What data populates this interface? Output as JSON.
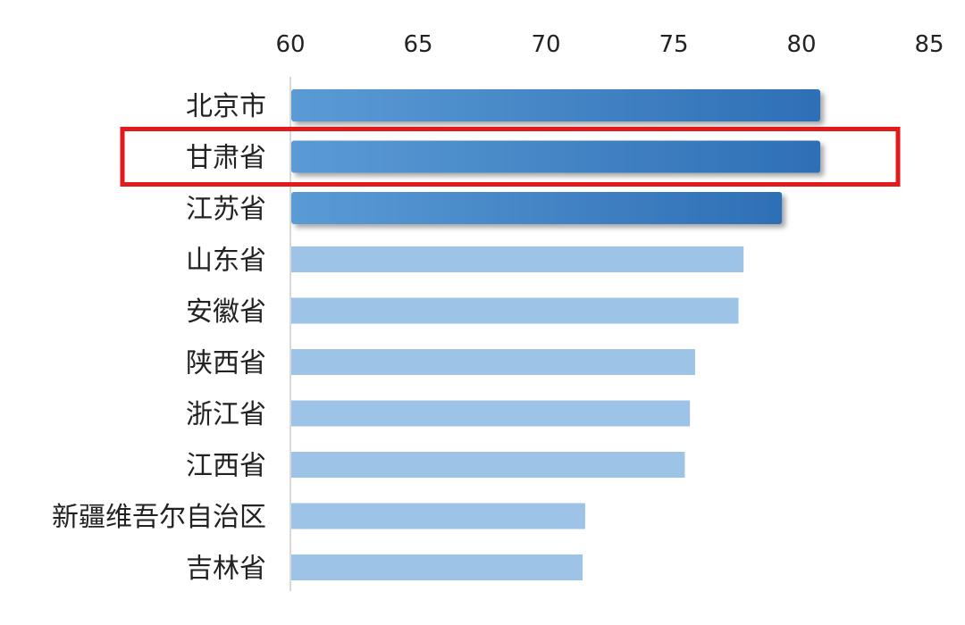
{
  "chart_data": {
    "type": "bar",
    "orientation": "horizontal",
    "categories": [
      "北京市",
      "甘肃省",
      "江苏省",
      "山东省",
      "安徽省",
      "陕西省",
      "浙江省",
      "江西省",
      "新疆维吾尔自治区",
      "吉林省"
    ],
    "values": [
      80.7,
      80.7,
      79.2,
      77.7,
      77.5,
      75.8,
      75.6,
      75.4,
      71.5,
      71.4
    ],
    "x_ticks": [
      "60",
      "65",
      "70",
      "75",
      "80",
      "85"
    ],
    "xlim": [
      60,
      85
    ],
    "axis_position": "top",
    "grid": false,
    "highlighted_category": "甘肃省",
    "emphasized_categories": [
      "北京市",
      "甘肃省",
      "江苏省"
    ],
    "colors": {
      "top_bar_light": "#5b9bd5",
      "top_bar_dark": "#2e6fb6",
      "other_bar": "#9dc3e6",
      "highlight_box": "#e31a1c",
      "axis_line": "#d9d9d9"
    }
  }
}
